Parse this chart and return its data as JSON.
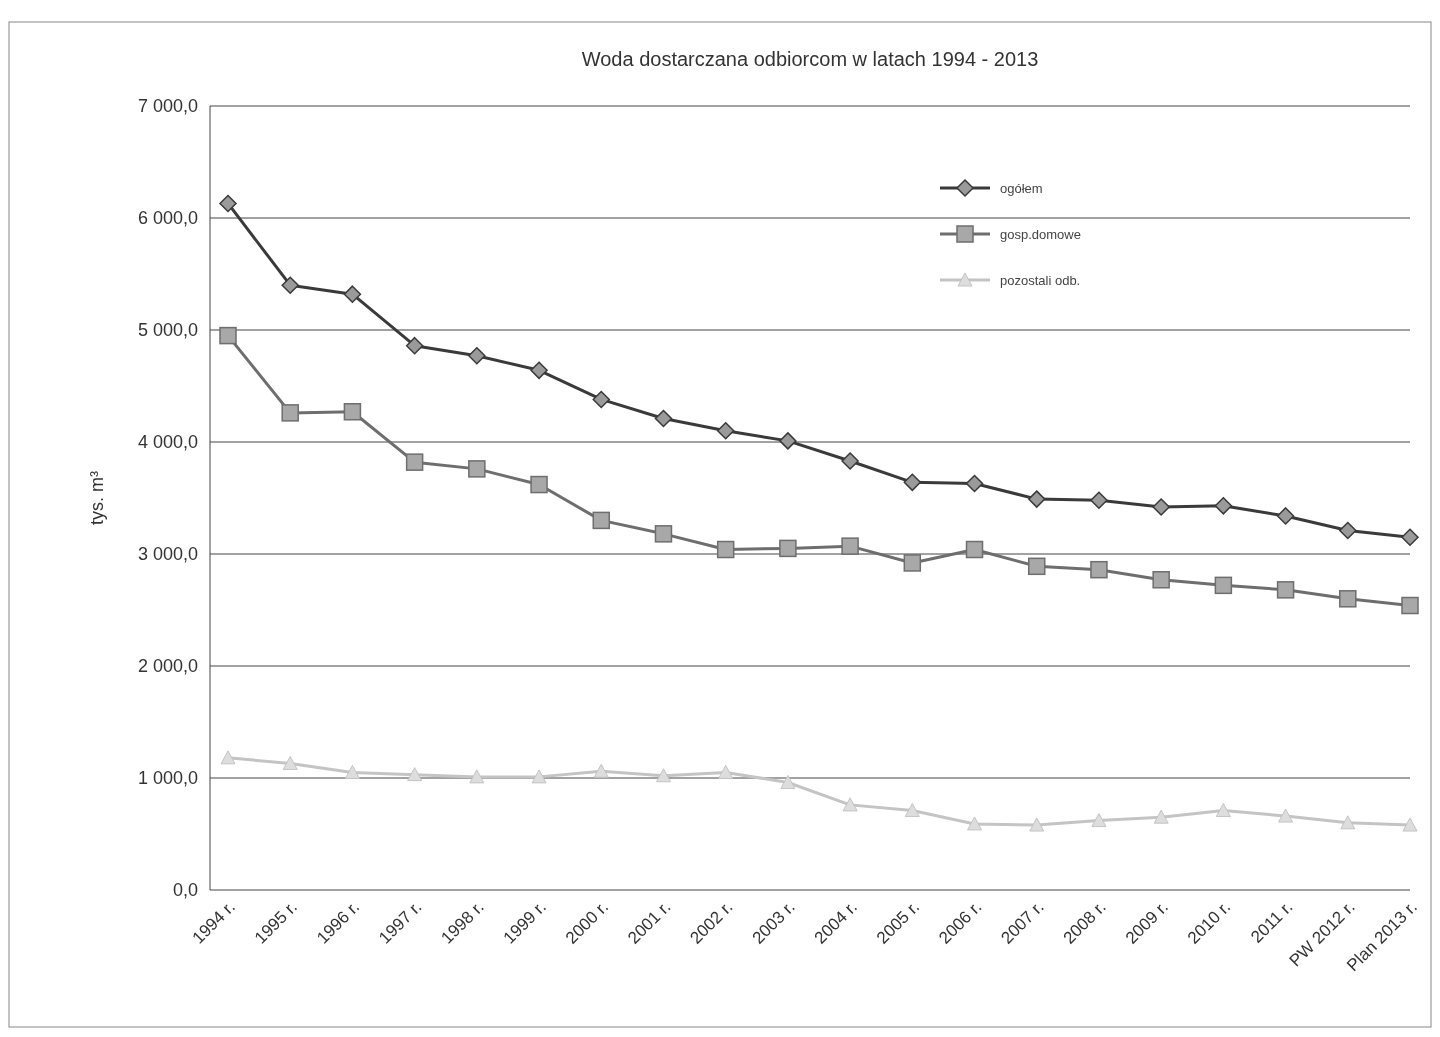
{
  "chart_data": {
    "type": "line",
    "title": "Woda dostarczana odbiorcom w latach 1994 - 2013",
    "ylabel": "tys. m³",
    "categories": [
      "1994 r.",
      "1995 r.",
      "1996 r.",
      "1997 r.",
      "1998 r.",
      "1999 r.",
      "2000 r.",
      "2001 r.",
      "2002 r.",
      "2003 r.",
      "2004 r.",
      "2005 r.",
      "2006 r.",
      "2007 r.",
      "2008 r.",
      "2009 r.",
      "2010 r.",
      "2011 r.",
      "PW 2012 r.",
      "Plan 2013 r."
    ],
    "series": [
      {
        "name": "ogółem",
        "color": "#3a3a3a",
        "marker": "diamond",
        "values": [
          6130,
          5400,
          5320,
          4860,
          4770,
          4640,
          4380,
          4210,
          4100,
          4010,
          3830,
          3640,
          3630,
          3490,
          3480,
          3420,
          3430,
          3340,
          3210,
          3150
        ]
      },
      {
        "name": "gosp.domowe",
        "color": "#6e6e6e",
        "marker": "square",
        "values": [
          4950,
          4260,
          4270,
          3820,
          3760,
          3620,
          3300,
          3180,
          3040,
          3050,
          3070,
          2920,
          3040,
          2890,
          2860,
          2770,
          2720,
          2680,
          2600,
          2540
        ]
      },
      {
        "name": "pozostali odb.",
        "color": "#c4c4c4",
        "marker": "triangle",
        "values": [
          1180,
          1130,
          1050,
          1030,
          1010,
          1010,
          1060,
          1020,
          1050,
          960,
          760,
          710,
          590,
          580,
          620,
          650,
          710,
          660,
          600,
          580
        ]
      }
    ],
    "ylim": [
      0,
      7000
    ],
    "yticks": [
      {
        "value": 0,
        "label": "0,0"
      },
      {
        "value": 1000,
        "label": "1 000,0"
      },
      {
        "value": 2000,
        "label": "2 000,0"
      },
      {
        "value": 3000,
        "label": "3 000,0"
      },
      {
        "value": 4000,
        "label": "4 000,0"
      },
      {
        "value": 5000,
        "label": "5 000,0"
      },
      {
        "value": 6000,
        "label": "6 000,0"
      },
      {
        "value": 7000,
        "label": "7 000,0"
      }
    ],
    "grid": "y",
    "legend": "top right"
  }
}
